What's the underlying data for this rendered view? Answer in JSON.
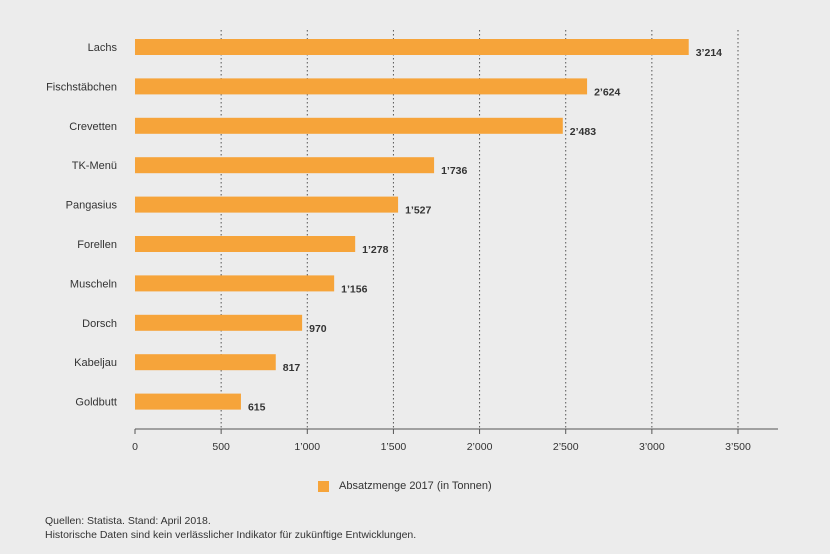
{
  "chart_data": {
    "type": "bar",
    "orientation": "horizontal",
    "categories": [
      "Lachs",
      "Fischstäbchen",
      "Crevetten",
      "TK-Menü",
      "Pangasius",
      "Forellen",
      "Muscheln",
      "Dorsch",
      "Kabeljau",
      "Goldbutt"
    ],
    "values": [
      3214,
      2624,
      2483,
      1736,
      1527,
      1278,
      1156,
      970,
      817,
      615
    ],
    "value_labels": [
      "3’214",
      "2’624",
      "2’483",
      "1’736",
      "1’527",
      "1’278",
      "1’156",
      "970",
      "817",
      "615"
    ],
    "xlim": [
      0,
      3500
    ],
    "xticks": [
      0,
      500,
      1000,
      1500,
      2000,
      2500,
      3000,
      3500
    ],
    "xtick_labels": [
      "0",
      "500",
      "1’000",
      "1’500",
      "2’000",
      "2’500",
      "3’000",
      "3’500"
    ],
    "grid": "vertical-dotted",
    "series": [
      {
        "name": "Absatzmenge 2017 (in Tonnen)"
      }
    ],
    "legend_position": "bottom",
    "bar_color": "#f6a43a"
  },
  "footer": {
    "source": "Quellen: Statista. Stand: April 2018.",
    "note": "Historische Daten sind kein verlässlicher Indikator für zukünftige Entwicklungen."
  }
}
